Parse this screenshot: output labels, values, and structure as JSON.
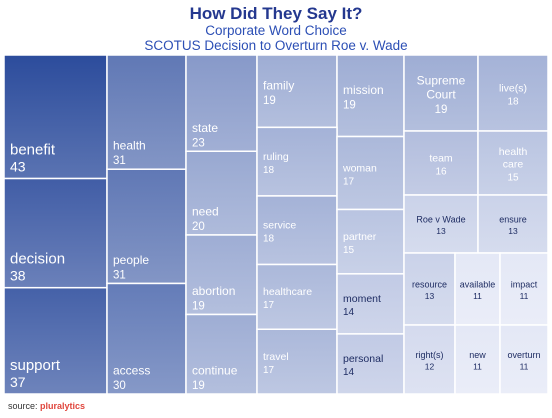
{
  "chart_data": {
    "type": "treemap",
    "title": "How Did They Say It?",
    "subtitle": "Corporate Word Choice",
    "subtitle2": "SCOTUS Decision to Overturn Roe v. Wade",
    "items": [
      {
        "label": "benefit",
        "value": 43
      },
      {
        "label": "decision",
        "value": 38
      },
      {
        "label": "support",
        "value": 37
      },
      {
        "label": "health",
        "value": 31
      },
      {
        "label": "people",
        "value": 31
      },
      {
        "label": "access",
        "value": 30
      },
      {
        "label": "state",
        "value": 23
      },
      {
        "label": "need",
        "value": 20
      },
      {
        "label": "abortion",
        "value": 19
      },
      {
        "label": "continue",
        "value": 19
      },
      {
        "label": "family",
        "value": 19
      },
      {
        "label": "mission",
        "value": 19
      },
      {
        "label": "Supreme Court",
        "value": 19
      },
      {
        "label": "live(s)",
        "value": 18
      },
      {
        "label": "ruling",
        "value": 18
      },
      {
        "label": "service",
        "value": 18
      },
      {
        "label": "healthcare",
        "value": 17
      },
      {
        "label": "travel",
        "value": 17
      },
      {
        "label": "woman",
        "value": 17
      },
      {
        "label": "team",
        "value": 16
      },
      {
        "label": "health care",
        "value": 15
      },
      {
        "label": "partner",
        "value": 15
      },
      {
        "label": "moment",
        "value": 14
      },
      {
        "label": "personal",
        "value": 14
      },
      {
        "label": "Roe v Wade",
        "value": 13
      },
      {
        "label": "ensure",
        "value": 13
      },
      {
        "label": "resource",
        "value": 13
      },
      {
        "label": "right(s)",
        "value": 12
      },
      {
        "label": "available",
        "value": 11
      },
      {
        "label": "impact",
        "value": 11
      },
      {
        "label": "new",
        "value": 11
      },
      {
        "label": "overturn",
        "value": 11
      }
    ],
    "colors": {
      "dark": "#2c4c9c",
      "light": "#e4e8f6",
      "border": "#ffffff"
    }
  },
  "source": {
    "label": "source:",
    "brand": "pluralytics"
  }
}
